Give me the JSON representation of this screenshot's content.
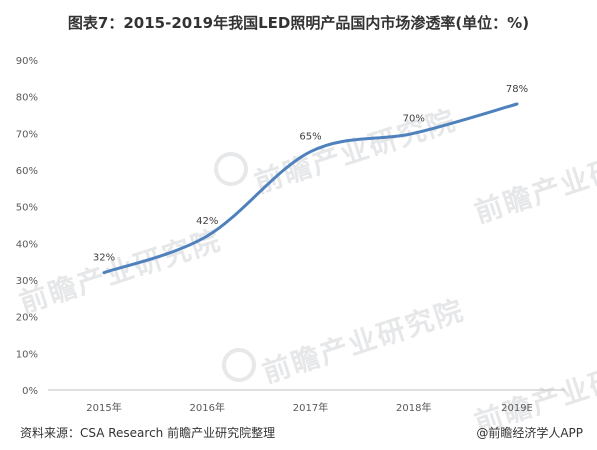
{
  "chart_data": {
    "type": "line",
    "title": "图表7：2015-2019年我国LED照明产品国内市场渗透率(单位：%)",
    "categories": [
      "2015年",
      "2016年",
      "2017年",
      "2018年",
      "2019E"
    ],
    "series": [
      {
        "values": [
          32,
          42,
          65,
          70,
          78
        ],
        "data_labels": [
          "32%",
          "42%",
          "65%",
          "70%",
          "78%"
        ]
      }
    ],
    "y_ticks": [
      "0%",
      "10%",
      "20%",
      "30%",
      "40%",
      "50%",
      "60%",
      "70%",
      "80%",
      "90%"
    ],
    "ylim": [
      0,
      90
    ],
    "grid": false,
    "line_color": "#4f81bd"
  },
  "watermark": "前瞻产业研究院",
  "footer": {
    "source": "资料来源：CSA Research 前瞻产业研究院整理",
    "credit": "@前瞻经济学人APP"
  }
}
